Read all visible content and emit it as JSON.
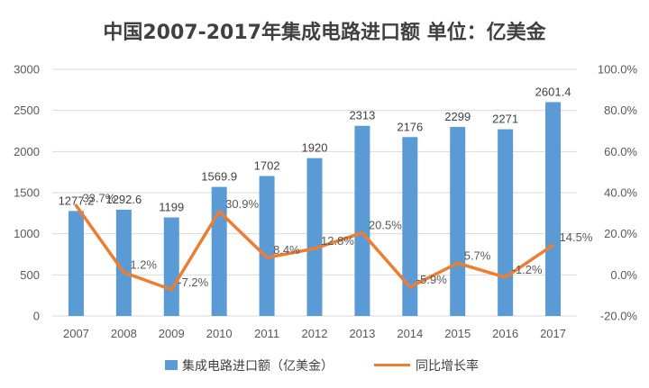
{
  "chart_data": {
    "type": "bar",
    "title": "中国2007-2017年集成电路进口额 单位：亿美金",
    "categories": [
      "2007",
      "2008",
      "2009",
      "2010",
      "2011",
      "2012",
      "2013",
      "2014",
      "2015",
      "2016",
      "2017"
    ],
    "series": [
      {
        "name": "集成电路进口额（亿美金）",
        "type": "bar",
        "axis": "left",
        "color": "#5B9BD5",
        "values": [
          1277.2,
          1292.6,
          1199,
          1569.9,
          1702,
          1920,
          2313,
          2176,
          2299,
          2271,
          2601.4
        ],
        "labels": [
          "1277.2",
          "1292.6",
          "1199",
          "1569.9",
          "1702",
          "1920",
          "2313",
          "2176",
          "2299",
          "2271",
          "2601.4"
        ]
      },
      {
        "name": "同比增长率",
        "type": "line",
        "axis": "right",
        "color": "#ED7D31",
        "values": [
          33.7,
          1.2,
          -7.2,
          30.9,
          8.4,
          12.8,
          20.5,
          -5.9,
          5.7,
          -1.2,
          14.5
        ],
        "labels": [
          "33.7%",
          "1.2%",
          "-7.2%",
          "30.9%",
          "8.4%",
          "12.8%",
          "20.5%",
          "-5.9%",
          "5.7%",
          "-1.2%",
          "14.5%"
        ]
      }
    ],
    "y_left": {
      "ylim": [
        0,
        3000
      ],
      "ticks": [
        "0",
        "500",
        "1000",
        "1500",
        "2000",
        "2500",
        "3000"
      ]
    },
    "y_right": {
      "ylim": [
        -20,
        100
      ],
      "ticks": [
        "-20.0%",
        "0.0%",
        "20.0%",
        "40.0%",
        "60.0%",
        "80.0%",
        "100.0%"
      ]
    },
    "grid": true,
    "legend": "bottom"
  }
}
